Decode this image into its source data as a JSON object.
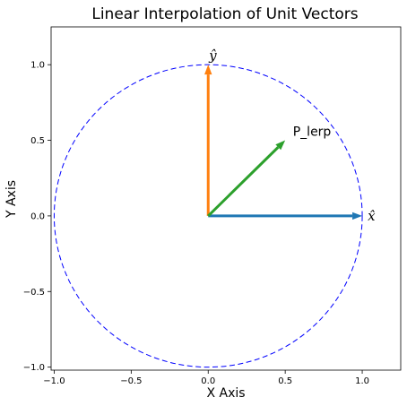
{
  "chart_data": {
    "type": "line",
    "title": "Linear Interpolation of Unit Vectors",
    "xlabel": "X Axis",
    "ylabel": "Y Axis",
    "xlim": [
      -1.02,
      1.25
    ],
    "ylim": [
      -1.02,
      1.25
    ],
    "xticks": [
      -1.0,
      -0.5,
      0.0,
      0.5,
      1.0
    ],
    "xtick_labels": [
      "−1.0",
      "−0.5",
      "0.0",
      "0.5",
      "1.0"
    ],
    "yticks": [
      -1.0,
      -0.5,
      0.0,
      0.5,
      1.0
    ],
    "ytick_labels": [
      "−1.0",
      "−0.5",
      "0.0",
      "0.5",
      "1.0"
    ],
    "grid": false,
    "circle": {
      "center": [
        0,
        0
      ],
      "radius": 1,
      "color": "#0000ff",
      "style": "dashed"
    },
    "vectors": [
      {
        "label": "x̂",
        "x0": 0,
        "y0": 0,
        "x1": 1.0,
        "y1": 0.0,
        "color": "#1f77b4",
        "label_pos": [
          1.06,
          0.0
        ]
      },
      {
        "label": "ŷ",
        "x0": 0,
        "y0": 0,
        "x1": 0.0,
        "y1": 1.0,
        "color": "#ff7f0e",
        "label_pos": [
          0.03,
          1.06
        ]
      },
      {
        "label": "P_lerp",
        "x0": 0,
        "y0": 0,
        "x1": 0.5,
        "y1": 0.5,
        "color": "#2ca02c",
        "label_pos": [
          0.55,
          0.56
        ]
      }
    ]
  }
}
